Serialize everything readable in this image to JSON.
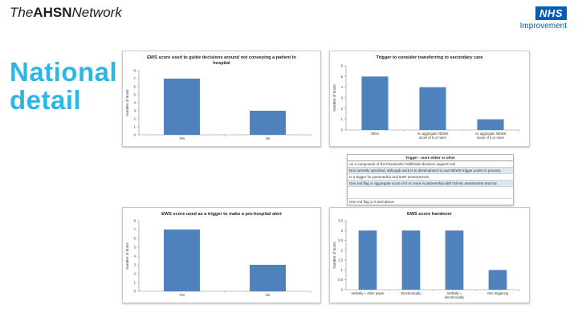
{
  "header": {
    "org_pre": "The",
    "org_bold": "AHSN",
    "org_post": "Network",
    "nhs_badge": "NHS",
    "nhs_sub": "Improvement"
  },
  "title": {
    "line1": "National",
    "line2": "detail"
  },
  "colors": {
    "bar": "#4f81bd",
    "title": "#2bb6e6",
    "nhs_blue": "#005eb8"
  },
  "legend_table": {
    "header": "Trigger - more either or other",
    "rows": [
      "As a component of the Paramedic Pathfinder decision support tool",
      "Not currently specified, although work is in development to use NEWS trigger points in process",
      "Is a trigger for paramedics and ESR assessments",
      "One red flag or aggregate score of 5 or more in partnership with holistic assessment and not",
      "",
      "One red flag or 5 and above"
    ]
  },
  "chart_data": [
    {
      "type": "bar",
      "title": "EWS score used to guide decisions around not conveying a patient to hospital",
      "ylabel": "Number of trusts",
      "xlabel": "",
      "categories": [
        "Yes",
        "No"
      ],
      "values": [
        7,
        3
      ],
      "ylim": [
        0,
        8
      ],
      "yticks": [
        0,
        1,
        2,
        3,
        4,
        5,
        6,
        7,
        8
      ],
      "grid": false
    },
    {
      "type": "bar",
      "title": "Trigger to consider transferring to secondary care",
      "ylabel": "Number of trusts",
      "xlabel": "",
      "categories": [
        "Other",
        "An aggregate NEWS score of 5 or more",
        "An aggregate NEWS score of 3 or more"
      ],
      "values": [
        5,
        4,
        1
      ],
      "ylim": [
        0,
        6
      ],
      "yticks": [
        0,
        1,
        2,
        3,
        4,
        5,
        6
      ],
      "grid": false
    },
    {
      "type": "bar",
      "title": "EWS score used as a trigger to make a pre-hospital alert",
      "ylabel": "Number of trusts",
      "xlabel": "",
      "categories": [
        "Yes",
        "No"
      ],
      "values": [
        7,
        3
      ],
      "ylim": [
        0,
        8
      ],
      "yticks": [
        0,
        1,
        2,
        3,
        4,
        5,
        6,
        7,
        8
      ],
      "grid": false
    },
    {
      "type": "bar",
      "title": "EWS score handover",
      "ylabel": "Number of trusts",
      "xlabel": "",
      "categories": [
        "Verbally + other paper",
        "Electronically",
        "Verbally + electronically",
        "One triggering"
      ],
      "values": [
        3,
        3,
        3,
        1
      ],
      "ylim": [
        0,
        3.5
      ],
      "yticks": [
        0,
        0.5,
        1,
        1.5,
        2,
        2.5,
        3,
        3.5
      ],
      "grid": false
    }
  ]
}
